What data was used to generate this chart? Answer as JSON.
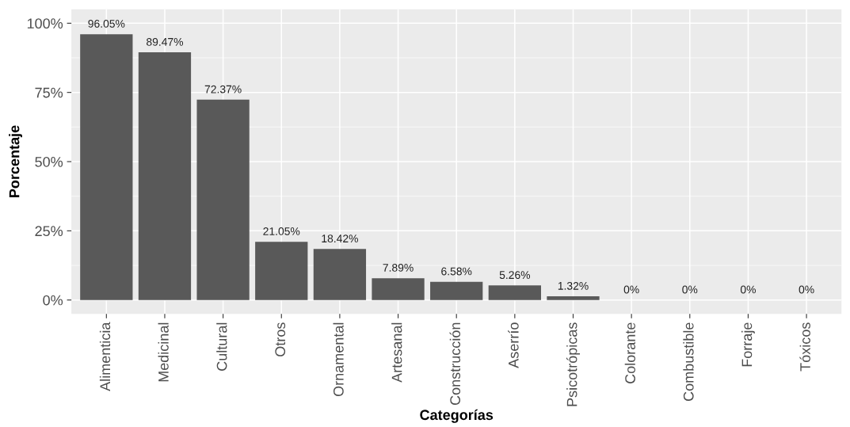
{
  "chart_data": {
    "type": "bar",
    "xlabel": "Categorías",
    "ylabel": "Porcentaje",
    "categories": [
      "Alimenticia",
      "Medicinal",
      "Cultural",
      "Otros",
      "Ornamental",
      "Artesanal",
      "Construcción",
      "Aserrío",
      "Psicotrópicas",
      "Colorante",
      "Combustible",
      "Forraje",
      "Tóxicos"
    ],
    "values": [
      96.05,
      89.47,
      72.37,
      21.05,
      18.42,
      7.89,
      6.58,
      5.26,
      1.32,
      0,
      0,
      0,
      0
    ],
    "value_labels": [
      "96.05%",
      "89.47%",
      "72.37%",
      "21.05%",
      "18.42%",
      "7.89%",
      "6.58%",
      "5.26%",
      "1.32%",
      "0%",
      "0%",
      "0%",
      "0%"
    ],
    "color": "#595959",
    "ylim": [
      -5,
      105
    ],
    "yticks": [
      {
        "value": 0,
        "label": "0%"
      },
      {
        "value": 25,
        "label": "25%"
      },
      {
        "value": 50,
        "label": "50%"
      },
      {
        "value": 75,
        "label": "75%"
      },
      {
        "value": 100,
        "label": "100%"
      }
    ],
    "grid": true
  }
}
